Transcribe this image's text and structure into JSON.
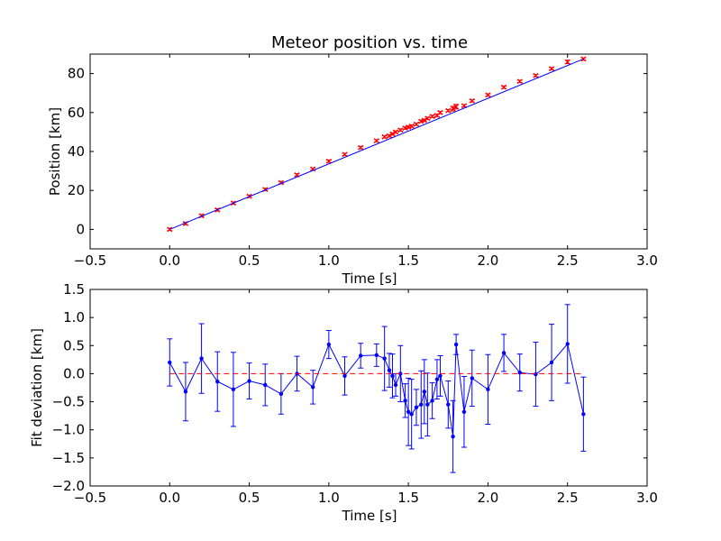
{
  "colors": {
    "fit_line": "#0000ff",
    "data_points": "#ff0000",
    "deviation": "#0000ff",
    "zero_line": "#ff0000",
    "axes": "#000000",
    "background": "#ffffff"
  },
  "chart_data": [
    {
      "type": "scatter",
      "title": "Meteor position vs. time",
      "xlabel": "Time [s]",
      "ylabel": "Position [km]",
      "xlim": [
        -0.5,
        3.0
      ],
      "ylim": [
        -10,
        90
      ],
      "xticks": [
        "−0.5",
        "0.0",
        "0.5",
        "1.0",
        "1.5",
        "2.0",
        "2.5",
        "3.0"
      ],
      "yticks": [
        "0",
        "20",
        "40",
        "60",
        "80"
      ],
      "grid": false,
      "series": [
        {
          "kind": "errorbar-points",
          "marker": "x",
          "x": [
            0,
            0.1,
            0.2,
            0.3,
            0.4,
            0.5,
            0.6,
            0.7,
            0.8,
            0.9,
            1.0,
            1.1,
            1.2,
            1.3,
            1.35,
            1.38,
            1.4,
            1.42,
            1.45,
            1.48,
            1.5,
            1.52,
            1.55,
            1.58,
            1.6,
            1.62,
            1.65,
            1.68,
            1.7,
            1.75,
            1.78,
            1.8,
            1.85,
            1.9,
            2.0,
            2.1,
            2.2,
            2.3,
            2.4,
            2.5,
            2.6
          ],
          "y": [
            0,
            3,
            7,
            10,
            13.5,
            17,
            20.5,
            24,
            28,
            31,
            35,
            38.5,
            42,
            45.5,
            47.5,
            48,
            49,
            50,
            51,
            52,
            52.5,
            53,
            54,
            55.5,
            56,
            57,
            58,
            58.5,
            60,
            61,
            62,
            63,
            63.5,
            66,
            69,
            73,
            76,
            79,
            82.5,
            86,
            87.5
          ],
          "yerr": [
            0.6,
            0.6,
            0.6,
            0.6,
            0.6,
            0.6,
            0.6,
            0.6,
            0.6,
            0.6,
            0.6,
            0.6,
            0.6,
            0.6,
            0.6,
            0.6,
            0.6,
            0.6,
            0.6,
            0.6,
            0.6,
            0.6,
            0.6,
            0.6,
            0.6,
            0.6,
            0.6,
            0.6,
            0.6,
            0.6,
            1.2,
            1.2,
            0.6,
            0.6,
            0.6,
            0.6,
            0.6,
            0.6,
            0.6,
            0.9,
            0.6
          ]
        },
        {
          "kind": "fit-line",
          "x": [
            0,
            2.6
          ],
          "y": [
            0,
            87.5
          ]
        }
      ]
    },
    {
      "type": "line",
      "xlabel": "Time [s]",
      "ylabel": "Fit deviation [km]",
      "xlim": [
        -0.5,
        3.0
      ],
      "ylim": [
        -2.0,
        1.5
      ],
      "xticks": [
        "−0.5",
        "0.0",
        "0.5",
        "1.0",
        "1.5",
        "2.0",
        "2.5",
        "3.0"
      ],
      "yticks": [
        "1.5",
        "1.0",
        "0.5",
        "0.0",
        "−0.5",
        "−1.0",
        "−1.5",
        "−2.0"
      ],
      "grid": false,
      "series": [
        {
          "kind": "errorbar-line",
          "marker": "dot",
          "x": [
            0,
            0.1,
            0.2,
            0.3,
            0.4,
            0.5,
            0.6,
            0.7,
            0.8,
            0.9,
            1.0,
            1.1,
            1.2,
            1.3,
            1.35,
            1.38,
            1.4,
            1.42,
            1.45,
            1.48,
            1.5,
            1.52,
            1.55,
            1.58,
            1.6,
            1.62,
            1.65,
            1.68,
            1.7,
            1.75,
            1.78,
            1.8,
            1.85,
            1.9,
            2.0,
            2.1,
            2.2,
            2.3,
            2.4,
            2.5,
            2.6
          ],
          "y": [
            0.2,
            -0.32,
            0.27,
            -0.14,
            -0.28,
            -0.13,
            -0.2,
            -0.36,
            0.0,
            -0.24,
            0.52,
            -0.04,
            0.32,
            0.33,
            0.27,
            0.06,
            -0.04,
            -0.2,
            0.0,
            -0.48,
            -0.68,
            -0.72,
            -0.6,
            -0.55,
            -0.32,
            -0.55,
            -0.48,
            -0.1,
            -0.04,
            -0.55,
            -1.12,
            0.52,
            -0.68,
            -0.08,
            -0.28,
            0.37,
            0.02,
            -0.01,
            0.2,
            0.53,
            -0.72
          ],
          "yerr": [
            0.42,
            0.52,
            0.62,
            0.53,
            0.66,
            0.32,
            0.37,
            0.36,
            0.31,
            0.3,
            0.25,
            0.34,
            0.22,
            0.2,
            0.57,
            0.3,
            0.39,
            0.2,
            0.5,
            0.3,
            0.6,
            0.62,
            0.32,
            0.6,
            0.57,
            0.56,
            0.32,
            0.35,
            0.36,
            0.42,
            0.64,
            0.18,
            0.63,
            0.5,
            0.62,
            0.33,
            0.33,
            0.57,
            0.68,
            0.7,
            0.66
          ]
        },
        {
          "kind": "zero-line",
          "style": "dashed",
          "x": [
            0,
            2.6
          ],
          "y": [
            0,
            0
          ]
        }
      ]
    }
  ]
}
